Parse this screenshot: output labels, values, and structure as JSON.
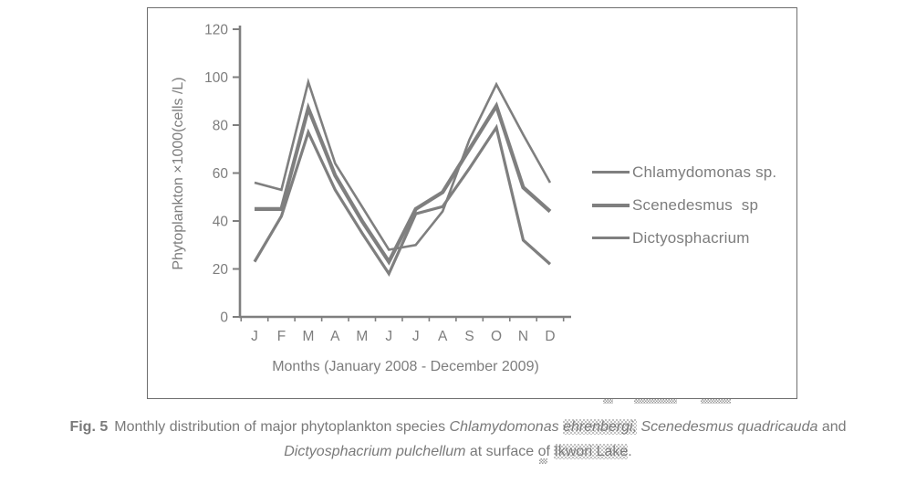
{
  "figure": {
    "caption": {
      "fig_label": "Fig. 5",
      "part1": "Monthly distribution of major phytoplankton species",
      "sp_a": "Chlamydomonas",
      "sp_a2": "ehrenbergi,",
      "sp_b": "Scenedesmus quadricauda",
      "joiner": "and",
      "sp_c": "Dictyosphacrium pulchellum",
      "part2": "at surface of",
      "loc": "Ikwori Lake",
      "dot": "."
    }
  },
  "chart_data": {
    "type": "line",
    "title": "",
    "categories": [
      "J",
      "F",
      "M",
      "A",
      "M",
      "J",
      "J",
      "A",
      "S",
      "O",
      "N",
      "D"
    ],
    "series": [
      {
        "name": "Chlamydomonas sp.",
        "values": [
          56,
          53,
          98,
          64,
          46,
          28,
          30,
          44,
          74,
          97,
          76,
          56
        ],
        "stroke_width": 2.6
      },
      {
        "name": "Scenedesmus  sp",
        "values": [
          45,
          45,
          87,
          59,
          40,
          23,
          45,
          52,
          70,
          88,
          54,
          44
        ],
        "stroke_width": 4.2
      },
      {
        "name": "Dictyosphacrium",
        "values": [
          23,
          42,
          77,
          53,
          35,
          18,
          43,
          46,
          62,
          79,
          32,
          22
        ],
        "stroke_width": 3.2
      }
    ],
    "xlabel": "Months (January 2008 - December 2009)",
    "ylabel": "Phytoplankton ×1000(cells /L)",
    "ylim": [
      0,
      120
    ],
    "yticks": [
      0,
      20,
      40,
      60,
      80,
      100,
      120
    ],
    "grid": false,
    "legend_position": "right-inside",
    "line_color": "#7f7f7f",
    "text_color": "#7d7d7d",
    "axis_color": "#7f7f7f"
  }
}
